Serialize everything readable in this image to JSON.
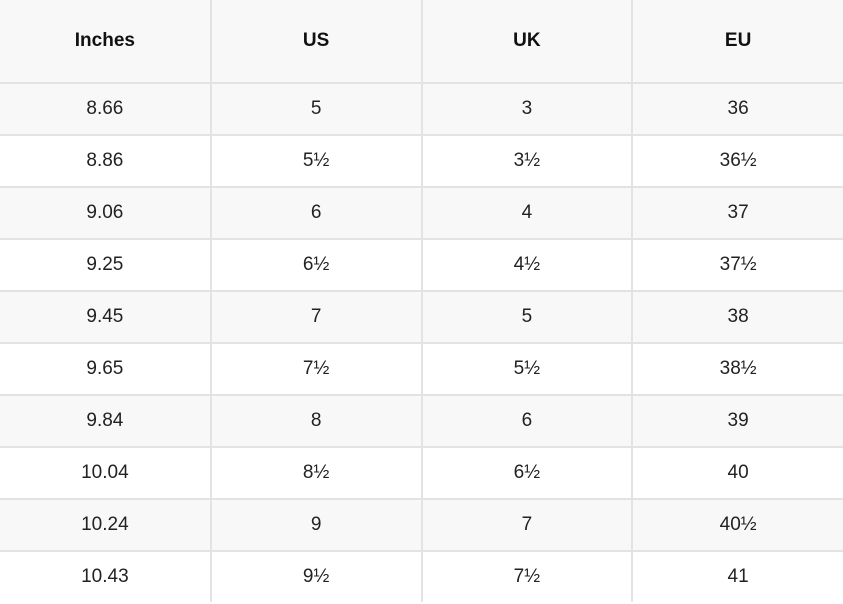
{
  "table": {
    "headers": [
      "Inches",
      "US",
      "UK",
      "EU"
    ],
    "rows": [
      [
        "8.66",
        "5",
        "3",
        "36"
      ],
      [
        "8.86",
        "5½",
        "3½",
        "36½"
      ],
      [
        "9.06",
        "6",
        "4",
        "37"
      ],
      [
        "9.25",
        "6½",
        "4½",
        "37½"
      ],
      [
        "9.45",
        "7",
        "5",
        "38"
      ],
      [
        "9.65",
        "7½",
        "5½",
        "38½"
      ],
      [
        "9.84",
        "8",
        "6",
        "39"
      ],
      [
        "10.04",
        "8½",
        "6½",
        "40"
      ],
      [
        "10.24",
        "9",
        "7",
        "40½"
      ],
      [
        "10.43",
        "9½",
        "7½",
        "41"
      ]
    ]
  }
}
